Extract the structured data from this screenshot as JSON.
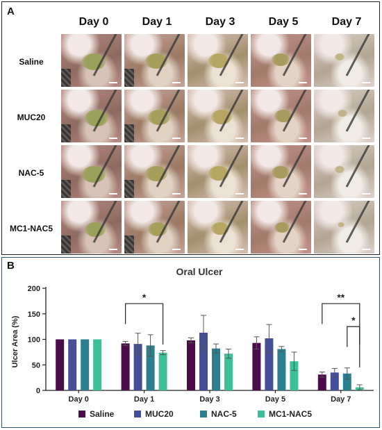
{
  "figure": {
    "panel_a": {
      "label": "A",
      "columns": [
        "Day 0",
        "Day 1",
        "Day 3",
        "Day 5",
        "Day 7"
      ],
      "rows": [
        "Saline",
        "MUC20",
        "NAC-5",
        "MC1-NAC5"
      ]
    },
    "panel_b": {
      "label": "B"
    }
  },
  "chart_data": {
    "type": "bar",
    "title": "Oral Ulcer",
    "ylabel": "Ulcer Area (%)",
    "xlabel": "",
    "ylim": [
      0,
      200
    ],
    "yticks": [
      0,
      50,
      100,
      150,
      200
    ],
    "categories": [
      "Day 0",
      "Day 1",
      "Day 3",
      "Day 5",
      "Day 7"
    ],
    "legend_position": "bottom",
    "series": [
      {
        "name": "Saline",
        "color": "#4a0d4a",
        "values": [
          100,
          92,
          98,
          93,
          31
        ],
        "errors": [
          0,
          4,
          5,
          12,
          5
        ]
      },
      {
        "name": "MUC20",
        "color": "#454f97",
        "values": [
          100,
          91,
          113,
          102,
          35
        ],
        "errors": [
          0,
          21,
          34,
          27,
          8
        ]
      },
      {
        "name": "NAC-5",
        "color": "#2b7f8f",
        "values": [
          100,
          88,
          82,
          81,
          33
        ],
        "errors": [
          0,
          21,
          9,
          5,
          11
        ]
      },
      {
        "name": "MC1-NAC5",
        "color": "#3dbf97",
        "values": [
          100,
          74,
          72,
          57,
          6
        ],
        "errors": [
          0,
          4,
          9,
          18,
          5
        ]
      }
    ],
    "significance": [
      {
        "label": "*",
        "category": "Day 1",
        "from_series": "Saline",
        "to_series": "MC1-NAC5"
      },
      {
        "label": "**",
        "category": "Day 7",
        "from_series": "Saline",
        "to_series": "MC1-NAC5"
      },
      {
        "label": "*",
        "category": "Day 7",
        "from_series": "NAC-5",
        "to_series": "MC1-NAC5"
      }
    ]
  }
}
